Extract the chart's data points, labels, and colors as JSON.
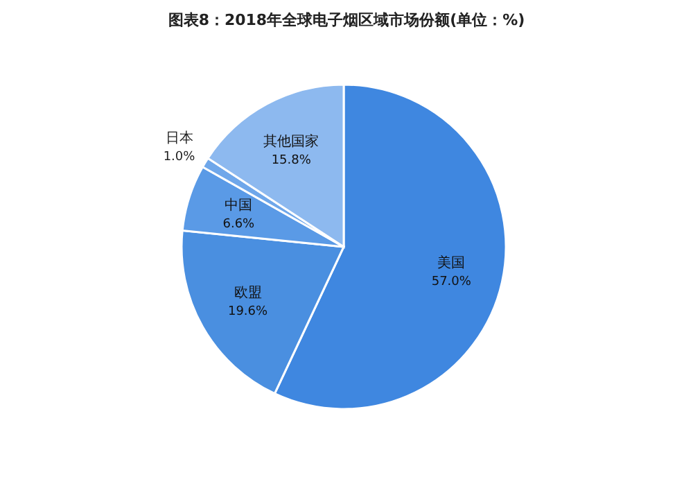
{
  "chart_data": {
    "type": "pie",
    "title": "图表8：2018年全球电子烟区域市场份额(单位：%)",
    "categories": [
      "美国",
      "欧盟",
      "中国",
      "日本",
      "其他国家"
    ],
    "values": [
      57.0,
      19.6,
      6.6,
      1.0,
      15.8
    ],
    "value_labels": [
      "57.0%",
      "19.6%",
      "6.6%",
      "1.0%",
      "15.8%"
    ],
    "colors": [
      "#3f87e0",
      "#4a8fe0",
      "#5a9ae6",
      "#6fa7ea",
      "#8db9ef"
    ]
  }
}
